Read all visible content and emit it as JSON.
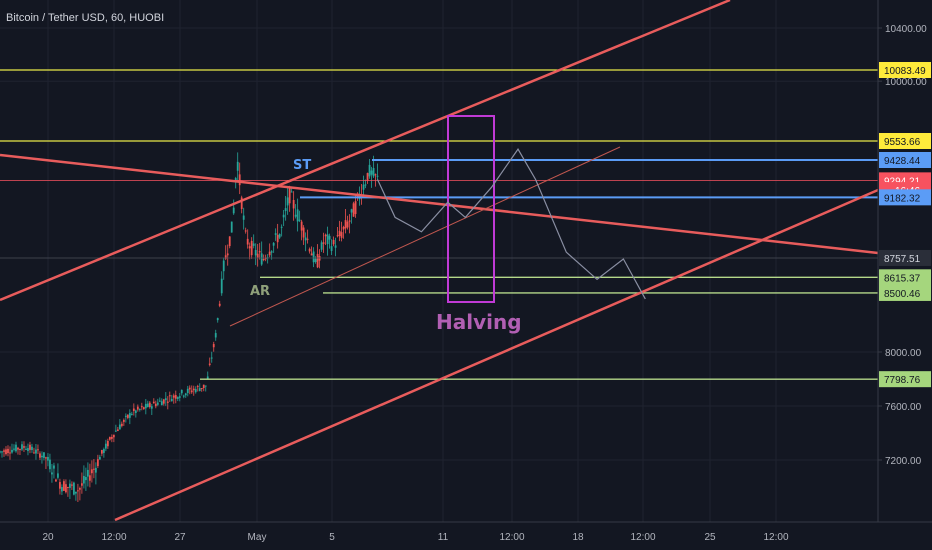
{
  "header": {
    "symbol_title": "Bitcoin / Tether USD, 60, HUOBI"
  },
  "colors": {
    "background": "#131722",
    "grid": "#1f2330",
    "axis_text": "#b2b5be",
    "candle_up": "#26a69a",
    "candle_down": "#ef5350",
    "trend_red": "#e85c5c",
    "yellow_line": "#e8e84a",
    "blue_line": "#5b9cf6",
    "green_line": "#b5d98a",
    "halving_box": "#c03ad6",
    "projection": "#8a8fa3",
    "current_price": "#f7525f"
  },
  "chart_data": {
    "type": "candlestick",
    "symbol": "BTC/USDT",
    "exchange": "HUOBI",
    "interval": "60",
    "y_axis": {
      "ylim": [
        6950,
        10640
      ],
      "ticks": [
        7200.0,
        7600.0,
        8000.0,
        10000.0,
        10400.0
      ],
      "tick_labels": [
        "7200.00",
        "7600.00",
        "8000.00",
        "10000.00",
        "10400.00"
      ]
    },
    "x_axis": {
      "tick_labels": [
        "20",
        "12:00",
        "27",
        "May",
        "5",
        "11",
        "12:00",
        "18",
        "12:00",
        "25",
        "12:00"
      ]
    },
    "horizontal_levels": [
      {
        "label": "10083.49",
        "price": 10083.49,
        "role": "resistance",
        "color": "yellow"
      },
      {
        "label": "9553.66",
        "price": 9553.66,
        "role": "resistance",
        "color": "yellow"
      },
      {
        "label": "9428.44",
        "price": 9428.44,
        "role": "level",
        "color": "blue"
      },
      {
        "label": "9294.21",
        "price": 9294.21,
        "role": "current",
        "color": "red"
      },
      {
        "label": "16:46",
        "price": 9230,
        "role": "countdown",
        "color": "red"
      },
      {
        "label": "9182.32",
        "price": 9182.32,
        "role": "level",
        "color": "blue"
      },
      {
        "label": "8757.51",
        "price": 8757.51,
        "role": "level",
        "color": "gray"
      },
      {
        "label": "8615.37",
        "price": 8615.37,
        "role": "support",
        "color": "green"
      },
      {
        "label": "8500.46",
        "price": 8500.46,
        "role": "support",
        "color": "green"
      },
      {
        "label": "7798.76",
        "price": 7798.76,
        "role": "support",
        "color": "green"
      }
    ],
    "annotations": [
      {
        "text": "ST",
        "kind": "label"
      },
      {
        "text": "AR",
        "kind": "label"
      },
      {
        "text": "Halving",
        "kind": "label"
      }
    ],
    "price_path": [
      [
        0,
        7260
      ],
      [
        0.03,
        7300
      ],
      [
        0.05,
        7230
      ],
      [
        0.07,
        7100
      ],
      [
        0.09,
        7080
      ],
      [
        0.11,
        7180
      ],
      [
        0.13,
        7400
      ],
      [
        0.15,
        7550
      ],
      [
        0.17,
        7600
      ],
      [
        0.19,
        7650
      ],
      [
        0.21,
        7700
      ],
      [
        0.235,
        7750
      ],
      [
        0.245,
        8100
      ],
      [
        0.255,
        8700
      ],
      [
        0.265,
        9000
      ],
      [
        0.27,
        9450
      ],
      [
        0.28,
        8900
      ],
      [
        0.29,
        8800
      ],
      [
        0.3,
        8750
      ],
      [
        0.31,
        8850
      ],
      [
        0.32,
        8950
      ],
      [
        0.33,
        9200
      ],
      [
        0.34,
        9050
      ],
      [
        0.35,
        8900
      ],
      [
        0.36,
        8700
      ],
      [
        0.37,
        8900
      ],
      [
        0.38,
        8850
      ],
      [
        0.39,
        8950
      ],
      [
        0.4,
        9050
      ],
      [
        0.41,
        9200
      ],
      [
        0.42,
        9350
      ],
      [
        0.43,
        9300
      ]
    ],
    "projection_path": [
      [
        0.43,
        9300
      ],
      [
        0.45,
        9050
      ],
      [
        0.48,
        8950
      ],
      [
        0.51,
        9150
      ],
      [
        0.53,
        9050
      ],
      [
        0.56,
        9250
      ],
      [
        0.59,
        9500
      ],
      [
        0.61,
        9300
      ],
      [
        0.645,
        8800
      ],
      [
        0.68,
        8600
      ],
      [
        0.71,
        8750
      ],
      [
        0.735,
        8450
      ]
    ]
  }
}
